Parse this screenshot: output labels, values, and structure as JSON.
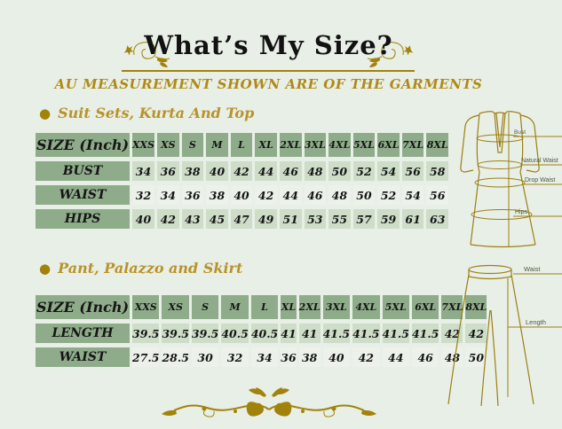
{
  "header": {
    "title": "What’s My Size?",
    "subtitle": "AU MEASUREMENT SHOWN ARE OF THE GARMENTS"
  },
  "colors": {
    "background": "#e8efe6",
    "cell_medium_green": "#8fac8a",
    "cell_light_green": "#cdddc7",
    "cell_pale_green": "#ecf2e9",
    "gold": "#a1820a",
    "gold_text": "#b8932c",
    "garment_outline": "#9c7f13",
    "text": "#151515"
  },
  "sections": [
    {
      "heading": "Suit Sets, Kurta And Top",
      "table": {
        "header": [
          "SIZE (Inch)",
          "XXS",
          "XS",
          "S",
          "M",
          "L",
          "XL",
          "2XL",
          "3XL",
          "4XL",
          "5XL",
          "6XL",
          "7XL",
          "8XL"
        ],
        "rows": [
          {
            "label": "BUST",
            "values": [
              "34",
              "36",
              "38",
              "40",
              "42",
              "44",
              "46",
              "48",
              "50",
              "52",
              "54",
              "56",
              "58"
            ]
          },
          {
            "label": "WAIST",
            "values": [
              "32",
              "34",
              "36",
              "38",
              "40",
              "42",
              "44",
              "46",
              "48",
              "50",
              "52",
              "54",
              "56"
            ]
          },
          {
            "label": "HIPS",
            "values": [
              "40",
              "42",
              "43",
              "45",
              "47",
              "49",
              "51",
              "53",
              "55",
              "57",
              "59",
              "61",
              "63"
            ]
          }
        ]
      },
      "figure_labels": [
        "Bust",
        "Natural Waist",
        "Drop Waist",
        "Hips"
      ]
    },
    {
      "heading": "Pant, Palazzo and Skirt",
      "table": {
        "header": [
          "SIZE (Inch)",
          "XXS",
          "XS",
          "S",
          "M",
          "L",
          "XL",
          "2XL",
          "3XL",
          "4XL",
          "5XL",
          "6XL",
          "7XL",
          "8XL"
        ],
        "rows": [
          {
            "label": "LENGTH",
            "values": [
              "39.5",
              "39.5",
              "39.5",
              "40.5",
              "40.5",
              "41",
              "41",
              "41.5",
              "41.5",
              "41.5",
              "41.5",
              "42",
              "42"
            ]
          },
          {
            "label": "WAIST",
            "values": [
              "27.5",
              "28.5",
              "30",
              "32",
              "34",
              "36",
              "38",
              "40",
              "42",
              "44",
              "46",
              "48",
              "50"
            ]
          }
        ]
      },
      "figure_labels": [
        "Waist",
        "Length"
      ]
    }
  ]
}
